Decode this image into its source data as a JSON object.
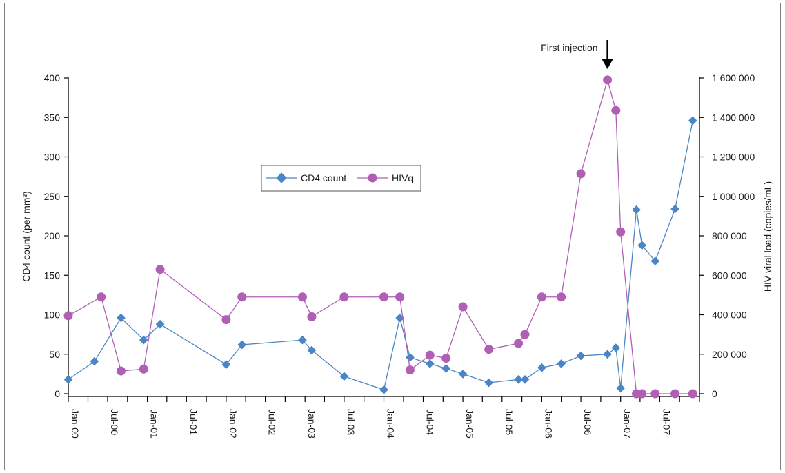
{
  "chart_data": {
    "type": "line",
    "x": [
      "2000-01-01",
      "2000-05-01",
      "2000-09-01",
      "2000-12-15",
      "2001-03-01",
      "2002-01-01",
      "2002-03-15",
      "2002-12-20",
      "2003-02-01",
      "2003-07-01",
      "2004-01-01",
      "2004-03-15",
      "2004-05-01",
      "2004-08-01",
      "2004-10-15",
      "2005-01-01",
      "2005-05-01",
      "2005-09-15",
      "2005-10-15",
      "2006-01-01",
      "2006-04-01",
      "2006-07-01",
      "2006-11-01",
      "2006-12-10",
      "2007-01-01",
      "2007-03-15",
      "2007-04-10",
      "2007-06-10",
      "2007-09-10",
      "2007-12-01"
    ],
    "xlabels": [
      "Jan-00",
      "Jul-00",
      "Jan-01",
      "Jul-01",
      "Jan-02",
      "Jul-02",
      "Jan-03",
      "Jul-03",
      "Jan-04",
      "Jul-04",
      "Jan-05",
      "Jul-05",
      "Jan-06",
      "Jul-06",
      "Jan-07",
      "Jul-07"
    ],
    "xticks": [
      "2000-01-01",
      "2000-07-01",
      "2001-01-01",
      "2001-07-01",
      "2002-01-01",
      "2002-07-01",
      "2003-01-01",
      "2003-07-01",
      "2004-01-01",
      "2004-07-01",
      "2005-01-01",
      "2005-07-01",
      "2006-01-01",
      "2006-07-01",
      "2007-01-01",
      "2007-07-01"
    ],
    "xlim": [
      "2000-01-01",
      "2008-01-01"
    ],
    "ylabel": "CD4 count (per mm³)",
    "ylim": [
      0,
      400
    ],
    "yticks": [
      0,
      50,
      100,
      150,
      200,
      250,
      300,
      350,
      400
    ],
    "y2label": "HIV viral load (copies/mL)",
    "y2lim": [
      0,
      1600000
    ],
    "y2ticks": [
      0,
      200000,
      400000,
      600000,
      800000,
      1000000,
      1200000,
      1400000,
      1600000
    ],
    "y2ticklabels": [
      "0",
      "200 000",
      "400 000",
      "600 000",
      "800 000",
      "1 000 000",
      "1 200 000",
      "1 400 000",
      "1 600 000"
    ],
    "series": [
      {
        "name": "CD4 count",
        "axis": "left",
        "marker": "diamond",
        "color": "#4a86c5",
        "points": [
          [
            "2000-01-01",
            18
          ],
          [
            "2000-05-01",
            41
          ],
          [
            "2000-09-01",
            96
          ],
          [
            "2000-12-15",
            68
          ],
          [
            "2001-03-01",
            88
          ],
          [
            "2002-01-01",
            37
          ],
          [
            "2002-03-15",
            62
          ],
          [
            "2002-12-20",
            68
          ],
          [
            "2003-02-01",
            55
          ],
          [
            "2003-07-01",
            22
          ],
          [
            "2004-01-01",
            5
          ],
          [
            "2004-03-15",
            96
          ],
          [
            "2004-05-01",
            46
          ],
          [
            "2004-08-01",
            38
          ],
          [
            "2004-10-15",
            32
          ],
          [
            "2005-01-01",
            25
          ],
          [
            "2005-05-01",
            14
          ],
          [
            "2005-09-15",
            18
          ],
          [
            "2005-10-15",
            18
          ],
          [
            "2006-01-01",
            33
          ],
          [
            "2006-04-01",
            38
          ],
          [
            "2006-07-01",
            48
          ],
          [
            "2006-11-01",
            50
          ],
          [
            "2006-12-10",
            58
          ],
          [
            "2007-01-01",
            7
          ],
          [
            "2007-03-15",
            233
          ],
          [
            "2007-04-10",
            188
          ],
          [
            "2007-06-10",
            168
          ],
          [
            "2007-09-10",
            234
          ],
          [
            "2007-12-01",
            346
          ]
        ]
      },
      {
        "name": "HIVq",
        "axis": "right",
        "marker": "circle",
        "color": "#b15fb5",
        "points": [
          [
            "2000-01-01",
            395000
          ],
          [
            "2000-06-01",
            490000
          ],
          [
            "2000-09-01",
            115000
          ],
          [
            "2000-12-15",
            125000
          ],
          [
            "2001-03-01",
            630000
          ],
          [
            "2002-01-01",
            375000
          ],
          [
            "2002-03-15",
            490000
          ],
          [
            "2002-12-20",
            490000
          ],
          [
            "2003-02-01",
            390000
          ],
          [
            "2003-07-01",
            490000
          ],
          [
            "2004-01-01",
            490000
          ],
          [
            "2004-03-15",
            490000
          ],
          [
            "2004-05-01",
            120000
          ],
          [
            "2004-08-01",
            195000
          ],
          [
            "2004-10-15",
            180000
          ],
          [
            "2005-01-01",
            440000
          ],
          [
            "2005-05-01",
            225000
          ],
          [
            "2005-09-15",
            255000
          ],
          [
            "2005-10-15",
            300000
          ],
          [
            "2006-01-01",
            490000
          ],
          [
            "2006-04-01",
            490000
          ],
          [
            "2006-07-01",
            1115000
          ],
          [
            "2006-11-01",
            1590000
          ],
          [
            "2006-12-10",
            1435000
          ],
          [
            "2007-01-01",
            820000
          ],
          [
            "2007-03-15",
            0
          ],
          [
            "2007-04-10",
            0
          ],
          [
            "2007-06-10",
            0
          ],
          [
            "2007-09-10",
            0
          ],
          [
            "2007-12-01",
            0
          ]
        ]
      }
    ],
    "annotations": [
      {
        "text": "First injection",
        "x": "2006-11-01",
        "arrow": "down"
      }
    ],
    "legend": "upper-middle",
    "grid": false
  }
}
